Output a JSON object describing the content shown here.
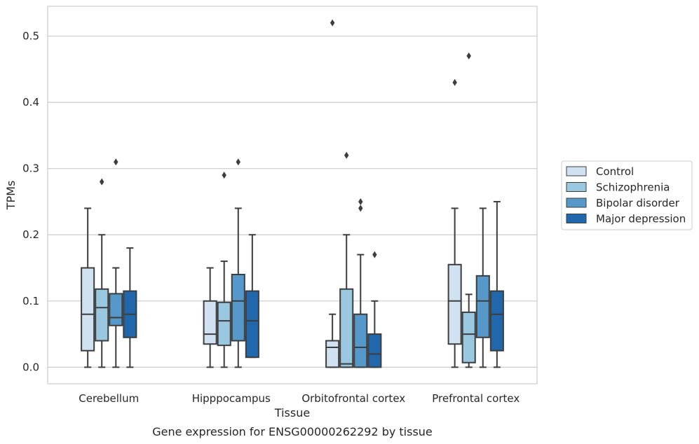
{
  "chart_data": {
    "type": "box",
    "title": "",
    "caption": "Gene expression for ENSG00000262292 by tissue",
    "xlabel": "Tissue",
    "ylabel": "TPMs",
    "ylim": [
      -0.025,
      0.545
    ],
    "yticks": [
      0.0,
      0.1,
      0.2,
      0.3,
      0.4,
      0.5
    ],
    "ytick_labels": [
      "0.0",
      "0.1",
      "0.2",
      "0.3",
      "0.4",
      "0.5"
    ],
    "grid": "horizontal",
    "legend_position": "right",
    "categories": [
      "Cerebellum",
      "Hipppocampus",
      "Orbitofrontal cortex",
      "Prefrontal cortex"
    ],
    "series": [
      {
        "name": "Control",
        "color": "#d0e1f2",
        "boxes": [
          {
            "whislo": 0.0,
            "q1": 0.025,
            "med": 0.08,
            "q3": 0.15,
            "whishi": 0.24,
            "fliers": []
          },
          {
            "whislo": 0.0,
            "q1": 0.035,
            "med": 0.05,
            "q3": 0.1,
            "whishi": 0.15,
            "fliers": []
          },
          {
            "whislo": 0.0,
            "q1": 0.0,
            "med": 0.03,
            "q3": 0.04,
            "whishi": 0.08,
            "fliers": [
              0.52
            ]
          },
          {
            "whislo": 0.0,
            "q1": 0.035,
            "med": 0.1,
            "q3": 0.155,
            "whishi": 0.24,
            "fliers": [
              0.43
            ]
          }
        ]
      },
      {
        "name": "Schizophrenia",
        "color": "#9ac8e0",
        "boxes": [
          {
            "whislo": 0.0,
            "q1": 0.04,
            "med": 0.09,
            "q3": 0.118,
            "whishi": 0.2,
            "fliers": [
              0.28
            ]
          },
          {
            "whislo": 0.0,
            "q1": 0.033,
            "med": 0.07,
            "q3": 0.098,
            "whishi": 0.16,
            "fliers": [
              0.29
            ]
          },
          {
            "whislo": 0.0,
            "q1": 0.0,
            "med": 0.005,
            "q3": 0.118,
            "whishi": 0.2,
            "fliers": [
              0.32
            ]
          },
          {
            "whislo": 0.0,
            "q1": 0.007,
            "med": 0.05,
            "q3": 0.083,
            "whishi": 0.11,
            "fliers": [
              0.47
            ]
          }
        ]
      },
      {
        "name": "Bipolar disorder",
        "color": "#5598c9",
        "boxes": [
          {
            "whislo": 0.0,
            "q1": 0.063,
            "med": 0.075,
            "q3": 0.111,
            "whishi": 0.15,
            "fliers": [
              0.31
            ]
          },
          {
            "whislo": 0.0,
            "q1": 0.04,
            "med": 0.1,
            "q3": 0.14,
            "whishi": 0.24,
            "fliers": [
              0.31
            ]
          },
          {
            "whislo": 0.0,
            "q1": 0.0,
            "med": 0.03,
            "q3": 0.08,
            "whishi": 0.17,
            "fliers": [
              0.24,
              0.25
            ]
          },
          {
            "whislo": 0.0,
            "q1": 0.045,
            "med": 0.1,
            "q3": 0.138,
            "whishi": 0.24,
            "fliers": []
          }
        ]
      },
      {
        "name": "Major depression",
        "color": "#2167ac",
        "boxes": [
          {
            "whislo": 0.0,
            "q1": 0.045,
            "med": 0.08,
            "q3": 0.115,
            "whishi": 0.18,
            "fliers": []
          },
          {
            "whislo": 0.015,
            "q1": 0.015,
            "med": 0.07,
            "q3": 0.115,
            "whishi": 0.2,
            "fliers": []
          },
          {
            "whislo": 0.0,
            "q1": 0.0,
            "med": 0.02,
            "q3": 0.05,
            "whishi": 0.1,
            "fliers": [
              0.17
            ]
          },
          {
            "whislo": 0.0,
            "q1": 0.025,
            "med": 0.08,
            "q3": 0.115,
            "whishi": 0.25,
            "fliers": []
          }
        ]
      }
    ]
  }
}
